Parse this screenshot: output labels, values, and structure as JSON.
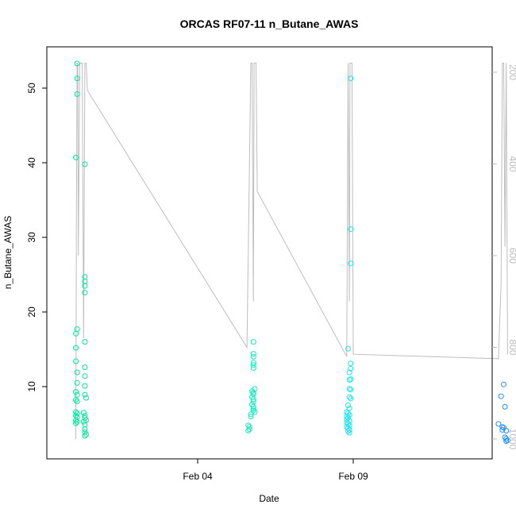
{
  "chart_data": {
    "type": "scatter",
    "title": "ORCAS RF07-11 n_Butane_AWAS",
    "xlabel": "Date",
    "ylabel": "n_Butane_AWAS",
    "x_ticks": [
      "Feb 04",
      "Feb 09"
    ],
    "y_ticks": [
      "10",
      "20",
      "30",
      "40",
      "50"
    ],
    "y2_ticks": [
      "200",
      "400",
      "600",
      "800",
      "1000"
    ],
    "grid": false,
    "legend": "none",
    "colors": {
      "frame": "#000000",
      "pressure_line": "#bdbdbd",
      "right_axis": "#bdbdbd"
    },
    "series": [
      {
        "color": "#00e89a",
        "points": [
          [
            "Jan 31 03:00",
            53.3
          ],
          [
            "Jan 31 03:00",
            51.3
          ],
          [
            "Jan 31 03:00",
            49.2
          ],
          [
            "Jan 31 02:00",
            40.7
          ],
          [
            "Jan 31 03:00",
            17.7
          ],
          [
            "Jan 31 02:00",
            17.1
          ],
          [
            "Jan 31 02:00",
            15.2
          ],
          [
            "Jan 31 02:00",
            13.4
          ],
          [
            "Jan 31 03:00",
            11.9
          ],
          [
            "Jan 31 03:00",
            10.5
          ],
          [
            "Jan 31 02:00",
            9.3
          ],
          [
            "Jan 31 03:00",
            8.9
          ],
          [
            "Jan 31 02:00",
            8.2
          ],
          [
            "Jan 31 03:00",
            8.0
          ],
          [
            "Jan 31 02:00",
            6.6
          ],
          [
            "Jan 31 03:00",
            6.4
          ],
          [
            "Jan 31 02:00",
            6.1
          ],
          [
            "Jan 31 03:00",
            5.9
          ],
          [
            "Jan 31 02:00",
            5.5
          ],
          [
            "Jan 31 03:00",
            5.3
          ],
          [
            "Jan 31 02:00",
            5.1
          ],
          [
            "Jan 31 09:00",
            39.8
          ],
          [
            "Jan 31 09:00",
            24.7
          ],
          [
            "Jan 31 09:00",
            24.1
          ],
          [
            "Jan 31 09:00",
            23.5
          ],
          [
            "Jan 31 09:00",
            22.6
          ],
          [
            "Jan 31 09:00",
            16.0
          ],
          [
            "Jan 31 09:00",
            12.6
          ],
          [
            "Jan 31 09:00",
            11.4
          ],
          [
            "Jan 31 09:00",
            10.1
          ],
          [
            "Jan 31 09:00",
            8.9
          ],
          [
            "Jan 31 10:00",
            8.5
          ],
          [
            "Jan 31 08:00",
            6.5
          ],
          [
            "Jan 31 09:00",
            6.1
          ],
          [
            "Jan 31 09:00",
            5.8
          ],
          [
            "Jan 31 10:00",
            5.5
          ],
          [
            "Jan 31 08:00",
            5.3
          ],
          [
            "Jan 31 09:00",
            4.9
          ],
          [
            "Jan 31 09:00",
            4.3
          ],
          [
            "Jan 31 09:00",
            3.9
          ],
          [
            "Jan 31 10:00",
            3.6
          ],
          [
            "Jan 31 09:00",
            3.4
          ]
        ]
      },
      {
        "color": "#16eac1",
        "points": [
          [
            "Feb 05 19:00",
            16.0
          ],
          [
            "Feb 05 19:00",
            14.4
          ],
          [
            "Feb 05 19:00",
            14.0
          ],
          [
            "Feb 05 19:00",
            13.2
          ],
          [
            "Feb 05 19:00",
            12.9
          ],
          [
            "Feb 05 19:00",
            12.5
          ],
          [
            "Feb 05 20:00",
            9.7
          ],
          [
            "Feb 05 18:00",
            9.4
          ],
          [
            "Feb 05 19:00",
            9.2
          ],
          [
            "Feb 05 19:00",
            9.0
          ],
          [
            "Feb 05 18:00",
            8.6
          ],
          [
            "Feb 05 19:00",
            8.3
          ],
          [
            "Feb 05 19:00",
            8.0
          ],
          [
            "Feb 05 18:00",
            7.6
          ],
          [
            "Feb 05 19:00",
            7.3
          ],
          [
            "Feb 05 19:00",
            7.0
          ],
          [
            "Feb 05 19:00",
            6.8
          ],
          [
            "Feb 05 20:00",
            6.6
          ],
          [
            "Feb 05 17:00",
            6.3
          ],
          [
            "Feb 05 17:00",
            6.0
          ],
          [
            "Feb 05 15:00",
            4.8
          ],
          [
            "Feb 05 16:00",
            4.6
          ],
          [
            "Feb 05 16:00",
            4.3
          ],
          [
            "Feb 05 15:00",
            4.1
          ]
        ]
      },
      {
        "color": "#1ce6ef",
        "points": [
          [
            "Feb 08 22:00",
            51.3
          ],
          [
            "Feb 08 22:00",
            31.1
          ],
          [
            "Feb 08 22:00",
            26.5
          ],
          [
            "Feb 08 20:00",
            15.1
          ],
          [
            "Feb 08 22:00",
            13.1
          ],
          [
            "Feb 08 22:00",
            12.4
          ],
          [
            "Feb 08 21:00",
            11.9
          ],
          [
            "Feb 08 22:00",
            11.0
          ],
          [
            "Feb 08 21:00",
            10.9
          ],
          [
            "Feb 08 21:00",
            9.7
          ],
          [
            "Feb 08 22:00",
            9.6
          ],
          [
            "Feb 08 21:00",
            8.6
          ],
          [
            "Feb 08 22:00",
            8.4
          ],
          [
            "Feb 08 20:00",
            7.5
          ],
          [
            "Feb 08 21:00",
            7.1
          ],
          [
            "Feb 08 19:00",
            6.6
          ],
          [
            "Feb 08 20:00",
            6.4
          ],
          [
            "Feb 08 21:00",
            6.2
          ],
          [
            "Feb 08 19:00",
            6.0
          ],
          [
            "Feb 08 20:00",
            5.8
          ],
          [
            "Feb 08 19:00",
            5.6
          ],
          [
            "Feb 08 21:00",
            5.4
          ],
          [
            "Feb 08 19:00",
            5.2
          ],
          [
            "Feb 08 20:00",
            5.0
          ],
          [
            "Feb 08 21:00",
            4.8
          ],
          [
            "Feb 08 19:00",
            4.6
          ],
          [
            "Feb 08 20:00",
            4.4
          ],
          [
            "Feb 08 21:00",
            4.2
          ],
          [
            "Feb 08 20:00",
            4.0
          ],
          [
            "Feb 08 21:00",
            3.8
          ]
        ]
      },
      {
        "color": "#1e90ff",
        "points": [
          [
            "Feb 13 20:00",
            10.3
          ],
          [
            "Feb 13 18:00",
            8.7
          ],
          [
            "Feb 13 21:00",
            7.3
          ],
          [
            "Feb 13 16:00",
            5.0
          ],
          [
            "Feb 13 19:00",
            4.6
          ],
          [
            "Feb 13 20:00",
            4.5
          ],
          [
            "Feb 13 19:00",
            4.2
          ],
          [
            "Feb 13 22:00",
            4.1
          ],
          [
            "Feb 13 21:00",
            3.2
          ],
          [
            "Feb 13 22:00",
            3.0
          ],
          [
            "Feb 13 23:00",
            2.8
          ],
          [
            "Feb 13 22:00",
            2.7
          ]
        ]
      }
    ],
    "pressure_path": [
      [
        "Jan 31 02:00",
        1000
      ],
      [
        "Jan 31 02:30",
        500
      ],
      [
        "Jan 31 03:00",
        180
      ],
      [
        "Jan 31 03:30",
        180
      ],
      [
        "Jan 31 04:00",
        600
      ],
      [
        "Jan 31 05:00",
        180
      ],
      [
        "Jan 31 07:00",
        180
      ],
      [
        "Jan 31 08:00",
        780
      ],
      [
        "Jan 31 09:00",
        180
      ],
      [
        "Jan 31 10:00",
        180
      ],
      [
        "Jan 31 11:00",
        240
      ],
      [
        "Feb 05 14:00",
        800
      ],
      [
        "Feb 05 17:00",
        180
      ],
      [
        "Feb 05 18:00",
        180
      ],
      [
        "Feb 05 19:00",
        700
      ],
      [
        "Feb 05 19:30",
        180
      ],
      [
        "Feb 05 20:00",
        180
      ],
      [
        "Feb 05 21:00",
        180
      ],
      [
        "Feb 05 22:00",
        460
      ],
      [
        "Feb 08 19:00",
        820
      ],
      [
        "Feb 08 20:00",
        180
      ],
      [
        "Feb 08 21:00",
        700
      ],
      [
        "Feb 08 21:30",
        180
      ],
      [
        "Feb 08 22:00",
        180
      ],
      [
        "Feb 08 23:00",
        180
      ],
      [
        "Feb 09 00:00",
        815
      ],
      [
        "Feb 13 16:00",
        825
      ],
      [
        "Feb 13 18:00",
        660
      ],
      [
        "Feb 13 19:00",
        180
      ],
      [
        "Feb 13 20:00",
        180
      ],
      [
        "Feb 13 21:00",
        580
      ],
      [
        "Feb 13 22:00",
        180
      ],
      [
        "Feb 13 23:00",
        815
      ]
    ]
  }
}
